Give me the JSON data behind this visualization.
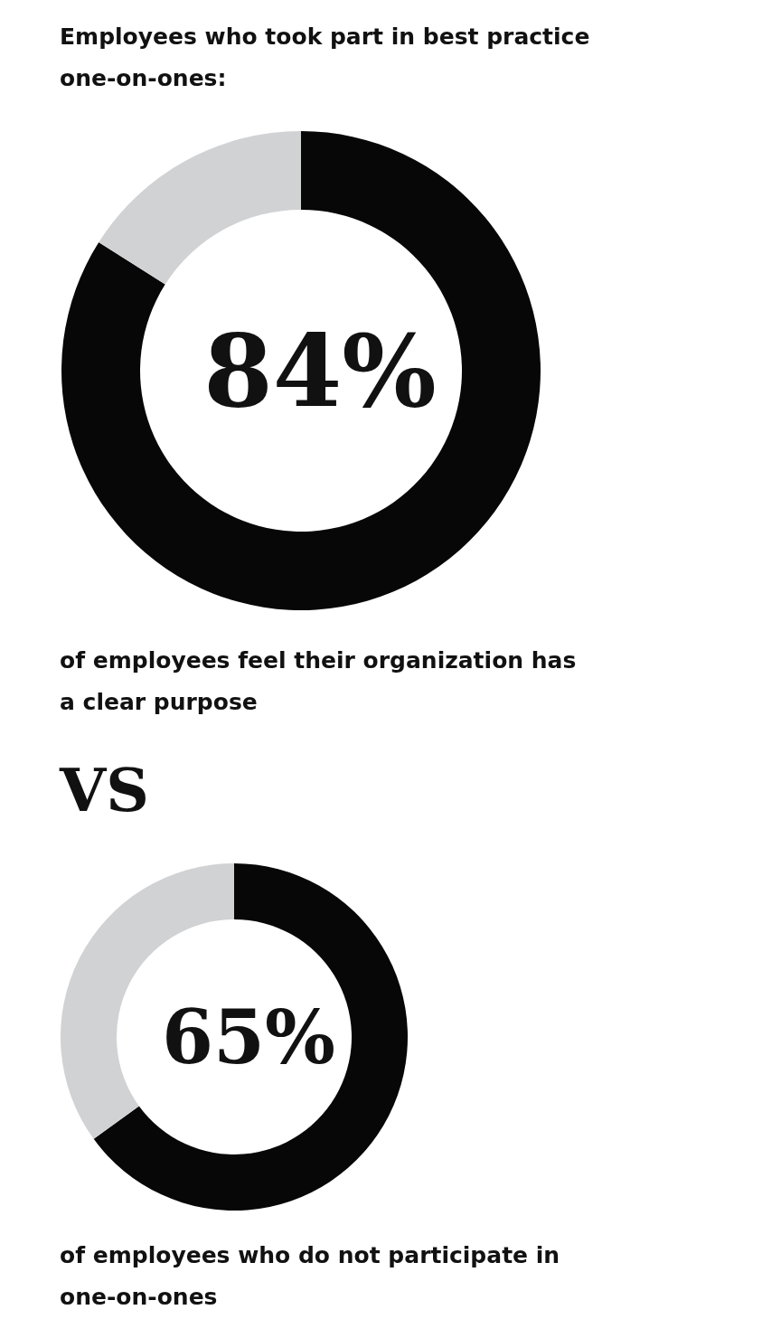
{
  "chart_data": [
    {
      "type": "donut",
      "title": "Employees who took part in best practice one-on-ones:",
      "categories": [
        null,
        null
      ],
      "values": [
        84,
        16
      ],
      "colors": [
        "#070707",
        "#d1d2d4"
      ],
      "value_labels": [
        "84%",
        null
      ],
      "annotations": [
        "of employees feel their organization has a clear purpose"
      ]
    },
    {
      "type": "donut",
      "title": "VS",
      "categories": [
        null,
        null
      ],
      "values": [
        65,
        35
      ],
      "colors": [
        "#070707",
        "#d1d2d4"
      ],
      "value_labels": [
        "65%",
        null
      ],
      "annotations": [
        "of employees who do not participate in one-on-ones"
      ]
    }
  ]
}
